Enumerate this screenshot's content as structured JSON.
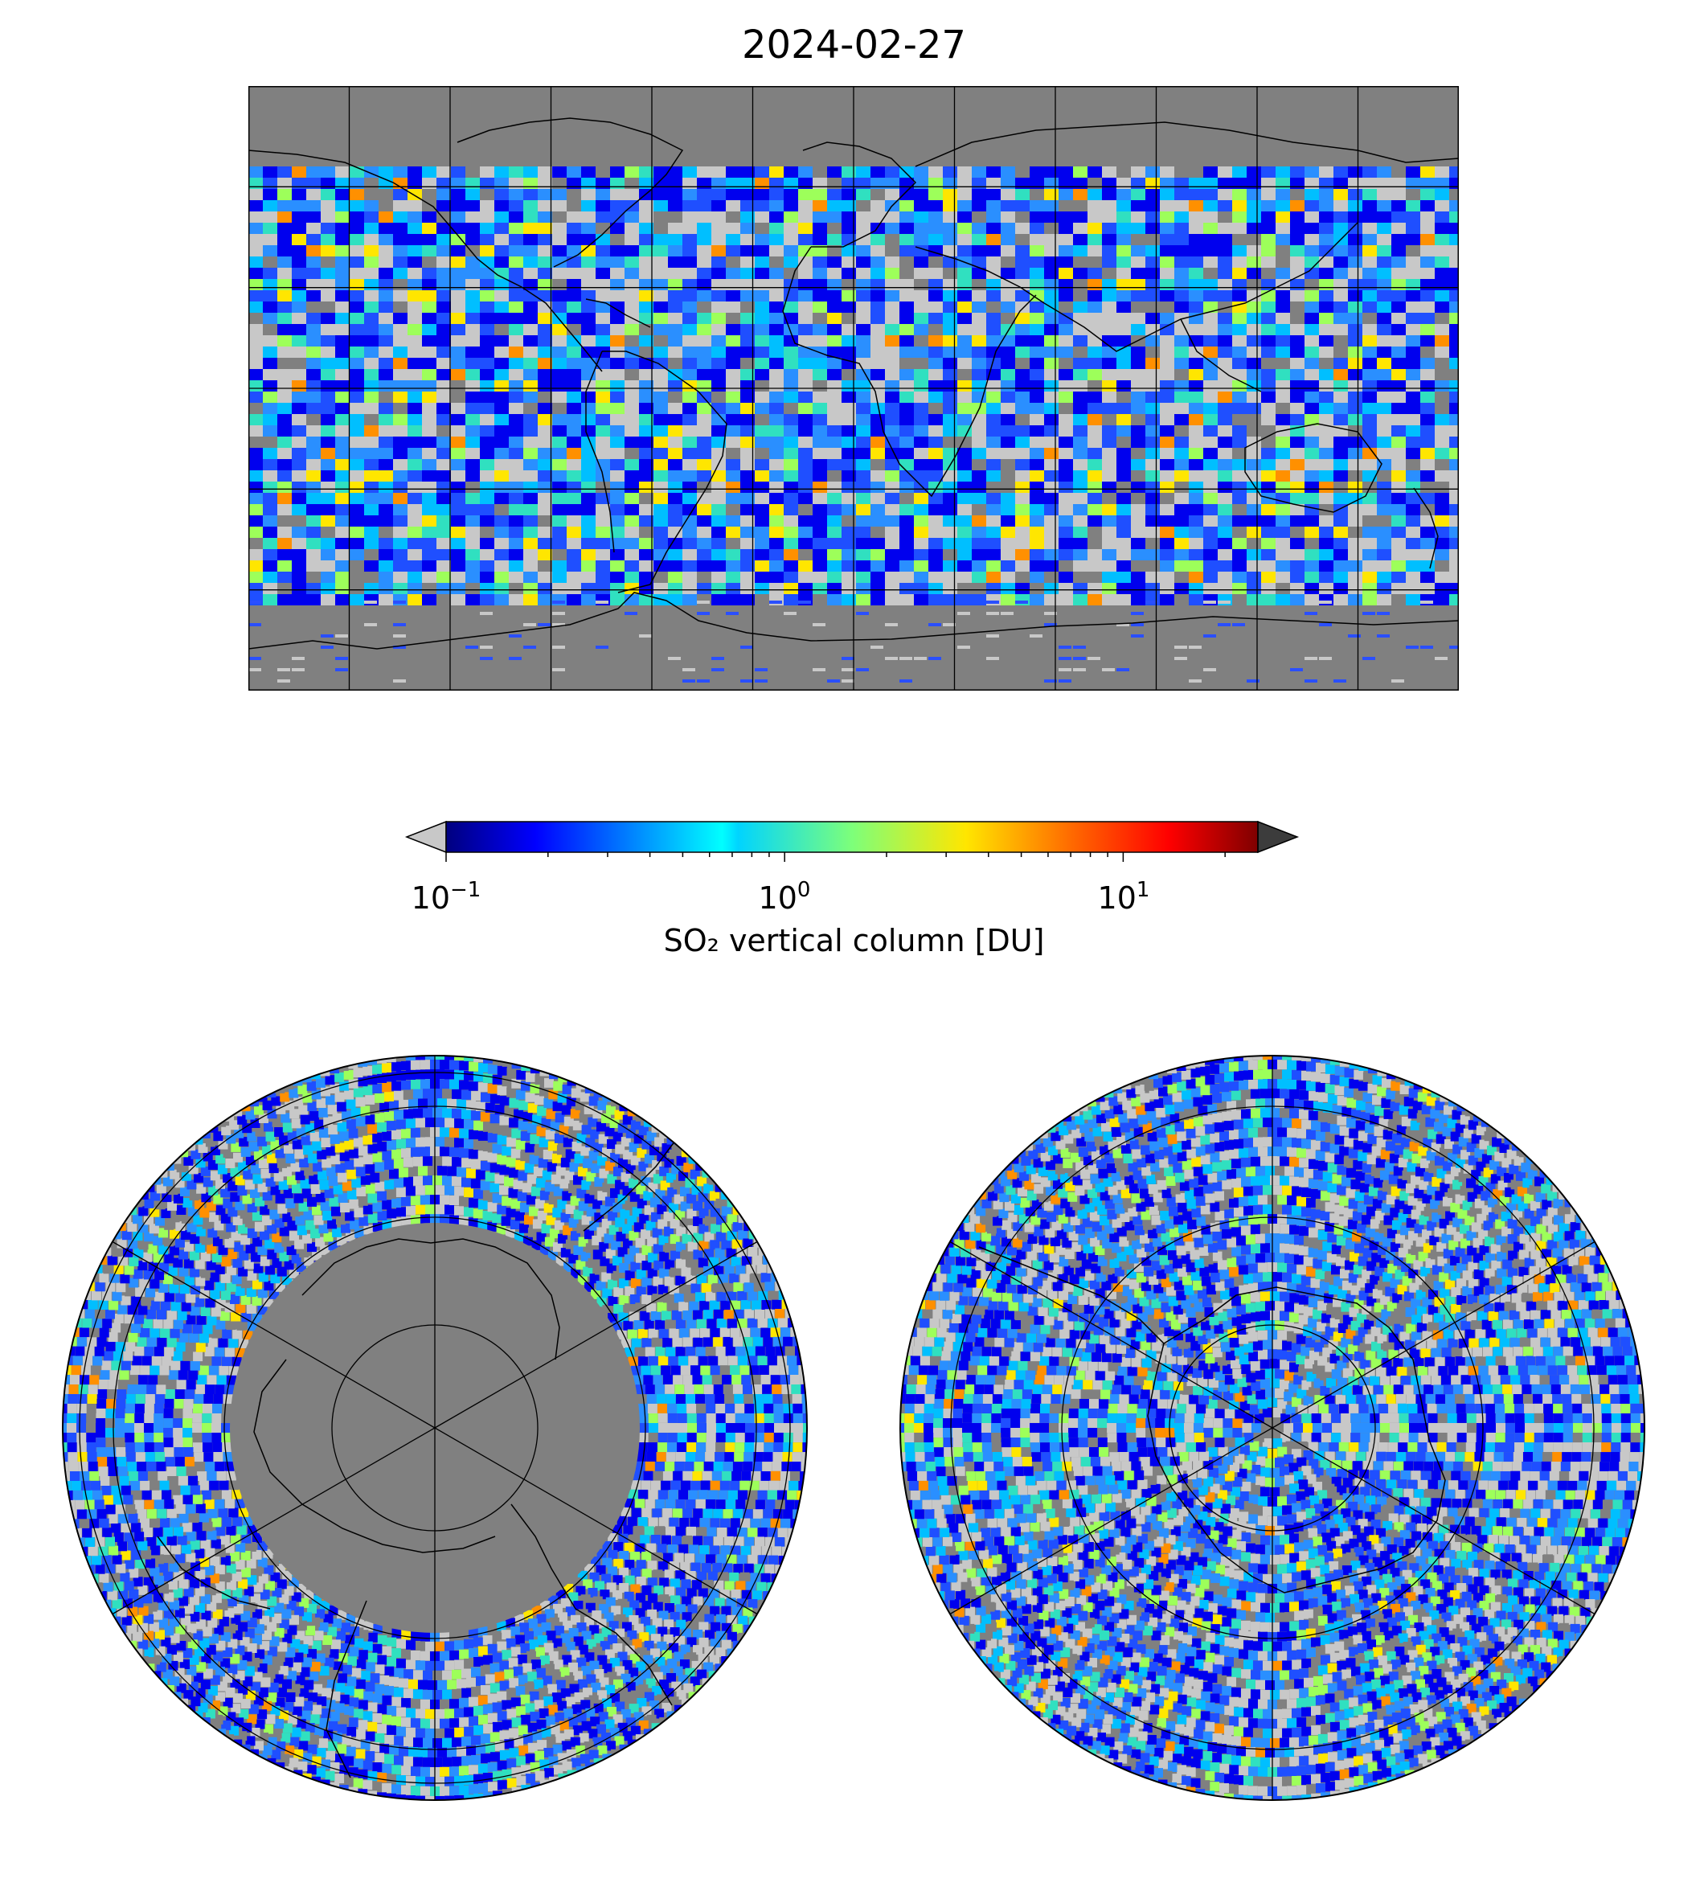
{
  "title": "2024-02-27",
  "colorbar": {
    "label": "SO₂ vertical column [DU]",
    "scale": "log",
    "range": [
      0.1,
      25
    ],
    "ticks": [
      {
        "value": 0.1,
        "base": "10",
        "exp": "−1"
      },
      {
        "value": 1,
        "base": "10",
        "exp": "0"
      },
      {
        "value": 10,
        "base": "10",
        "exp": "1"
      }
    ],
    "colormap": "jet",
    "extend": "both",
    "under_color": "#c8c8c8",
    "over_color": "#3c3c3c",
    "no_data_color": "#808080"
  },
  "maps": [
    {
      "projection": "plate-carree",
      "extent": "global",
      "gridlines": true,
      "coastlines": true
    },
    {
      "projection": "north-polar-stereographic",
      "gridlines": true,
      "coastlines": true
    },
    {
      "projection": "south-polar-stereographic",
      "gridlines": true,
      "coastlines": true
    }
  ]
}
